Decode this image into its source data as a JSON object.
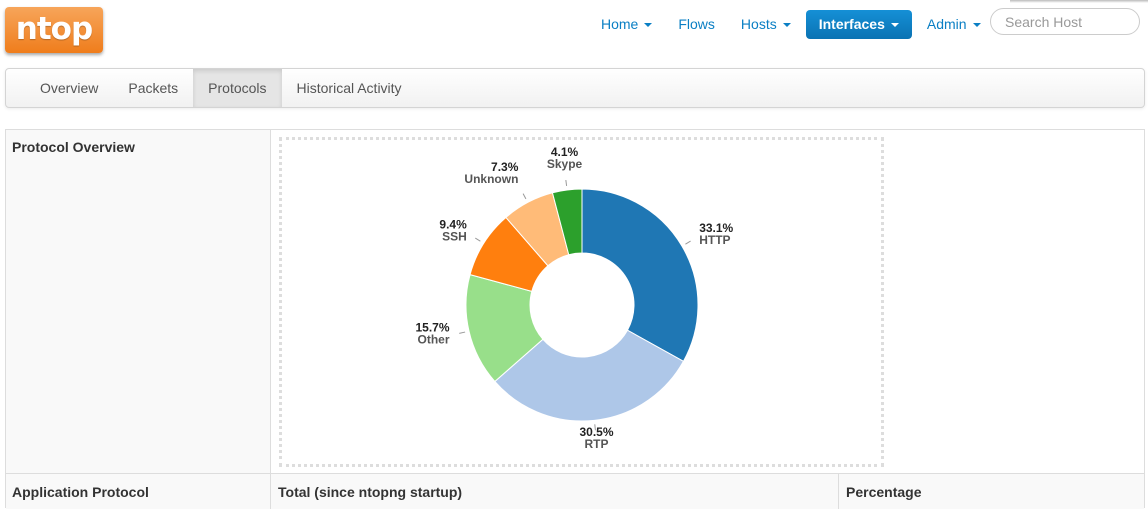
{
  "header": {
    "logo_text": "ntop",
    "nav": [
      {
        "label": "Home",
        "dropdown": true
      },
      {
        "label": "Flows",
        "dropdown": false
      },
      {
        "label": "Hosts",
        "dropdown": true
      },
      {
        "label": "Interfaces",
        "dropdown": true,
        "active": true
      },
      {
        "label": "Admin",
        "dropdown": true
      }
    ],
    "search_placeholder": "Search Host"
  },
  "tabs": [
    {
      "label": "Overview"
    },
    {
      "label": "Packets"
    },
    {
      "label": "Protocols",
      "active": true
    },
    {
      "label": "Historical Activity"
    }
  ],
  "table": {
    "overview_label": "Protocol Overview",
    "col_protocol": "Application Protocol",
    "col_total": "Total (since ntopng startup)",
    "col_percentage": "Percentage"
  },
  "chart_data": {
    "type": "pie",
    "donut": true,
    "slices": [
      {
        "label": "HTTP",
        "value": 33.1,
        "display": "33.1%",
        "color": "#1f77b4"
      },
      {
        "label": "RTP",
        "value": 30.5,
        "display": "30.5%",
        "color": "#aec7e8"
      },
      {
        "label": "Other",
        "value": 15.7,
        "display": "15.7%",
        "color": "#98df8a"
      },
      {
        "label": "SSH",
        "value": 9.4,
        "display": "9.4%",
        "color": "#ff7f0e"
      },
      {
        "label": "Unknown",
        "value": 7.3,
        "display": "7.3%",
        "color": "#ffbb78"
      },
      {
        "label": "Skype",
        "value": 4.1,
        "display": "4.1%",
        "color": "#2ca02c"
      }
    ]
  }
}
